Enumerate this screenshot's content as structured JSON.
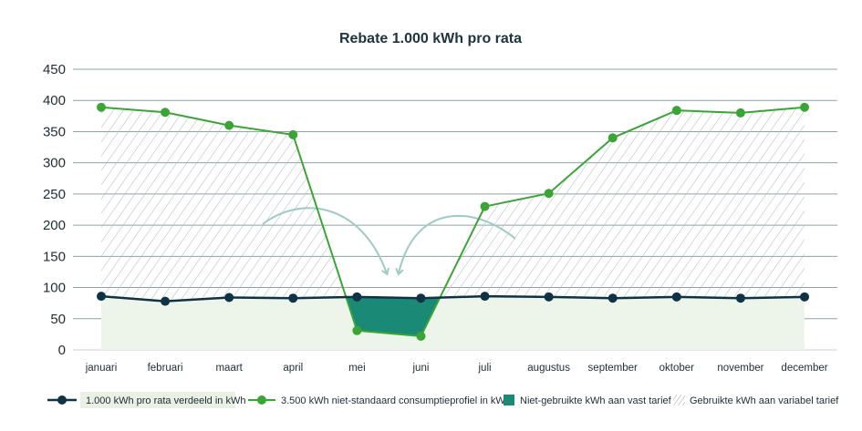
{
  "chart_data": {
    "type": "line",
    "title": "Rebate 1.000 kWh pro rata",
    "xlabel": "",
    "ylabel": "",
    "ylim": [
      0,
      450
    ],
    "yticks": [
      0,
      50,
      100,
      150,
      200,
      250,
      300,
      350,
      400,
      450
    ],
    "grid": true,
    "legend_position": "bottom",
    "categories": [
      "januari",
      "februari",
      "maart",
      "april",
      "mei",
      "juni",
      "juli",
      "augustus",
      "september",
      "oktober",
      "november",
      "december"
    ],
    "series": [
      {
        "name": "1.000 kWh pro rata verdeeld in kWh",
        "color": "#0f3345",
        "values": [
          86,
          78,
          84,
          83,
          85,
          83,
          86,
          85,
          83,
          85,
          83,
          85
        ]
      },
      {
        "name": "3.500 kWh niet-standaard consumptieprofiel in kWh",
        "color": "#3aa535",
        "values": [
          389,
          381,
          360,
          345,
          31,
          22,
          230,
          251,
          340,
          384,
          380,
          389
        ]
      }
    ],
    "areas": [
      {
        "name": "Niet-gebruikte kWh aan vast tarief",
        "color": "#1a8a76"
      },
      {
        "name": "Gebruikte kWh aan variabel tarief",
        "color": "#9aa4aa"
      }
    ]
  }
}
